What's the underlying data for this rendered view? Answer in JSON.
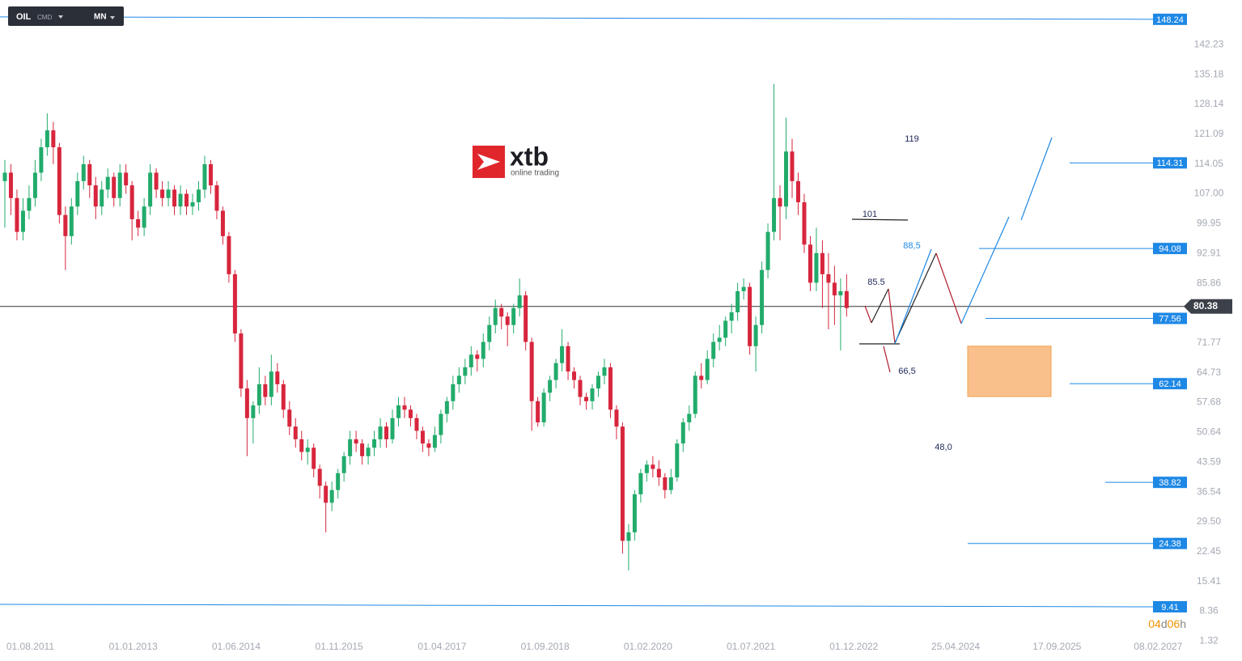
{
  "chart_data": {
    "type": "candlestick",
    "instrument": "OIL",
    "instrument_type": "CMD",
    "interval": "MN",
    "logo": {
      "name": "xtb",
      "tagline": "online trading"
    },
    "ylim": [
      -3.4,
      152.8
    ],
    "yticks": [
      142.23,
      135.18,
      128.14,
      121.09,
      114.05,
      {
        "value": 107,
        "label": "107.00"
      },
      99.95,
      92.91,
      85.86,
      71.77,
      64.73,
      57.68,
      50.64,
      43.59,
      36.54,
      {
        "value": 29.5,
        "label": "29.50"
      },
      22.45,
      15.41,
      8.36,
      1.32
    ],
    "xlim": [
      "01.03.2011",
      "01.07.2027"
    ],
    "xticks": [
      "01.08.2011",
      "01.01.2013",
      "01.06.2014",
      "01.11.2015",
      "01.04.2017",
      "01.09.2018",
      "01.02.2020",
      "01.07.2021",
      "01.12.2022",
      "25.04.2024",
      "17.09.2025",
      "08.02.2027"
    ],
    "up_color": "#22ab6b",
    "down_color": "#d7263d",
    "level_color": "#1e88e5",
    "levels": [
      148.24,
      114.31,
      94.08,
      77.56,
      62.14,
      38.82,
      24.38,
      9.41
    ],
    "last_price": 80.38,
    "zone": [
      59.1,
      71
    ],
    "annotations": [
      "119",
      "101",
      "88,5",
      "85.5",
      "66,5",
      "48,0"
    ],
    "countdown": [
      "04",
      "d",
      "06",
      "h"
    ],
    "candles": [
      [
        110,
        115,
        99,
        112
      ],
      [
        112,
        114,
        102,
        106
      ],
      [
        106,
        108,
        96,
        98
      ],
      [
        98,
        106,
        96,
        103
      ],
      [
        103,
        109,
        101,
        106
      ],
      [
        106,
        115,
        104,
        112
      ],
      [
        112,
        120,
        110,
        118
      ],
      [
        118,
        126,
        116,
        122
      ],
      [
        122,
        124,
        114,
        118
      ],
      [
        118,
        119,
        100,
        102
      ],
      [
        102,
        104,
        89,
        97
      ],
      [
        97,
        106,
        95,
        104
      ],
      [
        104,
        112,
        102,
        110
      ],
      [
        110,
        116,
        108,
        114
      ],
      [
        114,
        115,
        106,
        109
      ],
      [
        109,
        111,
        101,
        104
      ],
      [
        104,
        110,
        102,
        108
      ],
      [
        108,
        113,
        106,
        111
      ],
      [
        111,
        112,
        104,
        106
      ],
      [
        106,
        114,
        104,
        112
      ],
      [
        112,
        114,
        107,
        109
      ],
      [
        109,
        110,
        96,
        101
      ],
      [
        101,
        103,
        97,
        99
      ],
      [
        99,
        106,
        97,
        104
      ],
      [
        104,
        114,
        102,
        112
      ],
      [
        112,
        113,
        106,
        108
      ],
      [
        108,
        110,
        104,
        106
      ],
      [
        106,
        110,
        104,
        108
      ],
      [
        108,
        109,
        102,
        104
      ],
      [
        104,
        109,
        102,
        107
      ],
      [
        107,
        108,
        102,
        104
      ],
      [
        104,
        107,
        102,
        105
      ],
      [
        105,
        110,
        103,
        108
      ],
      [
        108,
        116,
        106,
        114
      ],
      [
        114,
        115,
        107,
        109
      ],
      [
        109,
        110,
        101,
        103
      ],
      [
        103,
        104,
        95,
        97
      ],
      [
        97,
        98,
        86,
        88
      ],
      [
        88,
        89,
        72,
        74
      ],
      [
        74,
        75,
        59,
        61
      ],
      [
        61,
        63,
        45,
        54
      ],
      [
        54,
        58,
        48,
        57
      ],
      [
        57,
        66,
        55,
        62
      ],
      [
        62,
        64,
        57,
        59
      ],
      [
        59,
        69,
        57,
        65
      ],
      [
        65,
        67,
        60,
        62
      ],
      [
        62,
        63,
        54,
        56
      ],
      [
        56,
        58,
        50,
        52
      ],
      [
        52,
        54,
        47,
        49
      ],
      [
        49,
        51,
        44,
        46
      ],
      [
        46,
        49,
        43,
        47
      ],
      [
        47,
        48,
        40,
        42
      ],
      [
        42,
        43,
        35,
        38
      ],
      [
        38,
        39,
        27,
        34
      ],
      [
        34,
        39,
        32,
        37
      ],
      [
        37,
        42,
        35,
        41
      ],
      [
        41,
        46,
        39,
        45
      ],
      [
        45,
        51,
        43,
        49
      ],
      [
        49,
        51,
        46,
        48
      ],
      [
        48,
        49,
        43,
        45
      ],
      [
        45,
        48,
        43,
        47
      ],
      [
        47,
        51,
        45,
        49
      ],
      [
        49,
        54,
        47,
        52
      ],
      [
        52,
        53,
        47,
        49
      ],
      [
        49,
        56,
        48,
        54
      ],
      [
        54,
        59,
        52,
        57
      ],
      [
        57,
        59,
        54,
        56
      ],
      [
        56,
        57,
        52,
        54
      ],
      [
        54,
        55,
        49,
        51
      ],
      [
        51,
        52,
        46,
        48
      ],
      [
        48,
        49,
        45,
        47
      ],
      [
        47,
        52,
        46,
        50
      ],
      [
        50,
        56,
        48,
        55
      ],
      [
        55,
        59,
        53,
        58
      ],
      [
        58,
        64,
        56,
        62
      ],
      [
        62,
        66,
        60,
        64
      ],
      [
        64,
        68,
        62,
        66
      ],
      [
        66,
        71,
        64,
        69
      ],
      [
        69,
        70,
        65,
        68
      ],
      [
        68,
        74,
        66,
        72
      ],
      [
        72,
        78,
        70,
        76
      ],
      [
        76,
        82,
        74,
        80
      ],
      [
        80,
        81,
        75,
        78
      ],
      [
        78,
        79,
        71,
        76
      ],
      [
        76,
        81,
        74,
        80
      ],
      [
        80,
        87,
        78,
        83
      ],
      [
        83,
        84,
        70,
        72
      ],
      [
        72,
        73,
        51,
        58
      ],
      [
        58,
        59,
        52,
        53
      ],
      [
        53,
        61,
        52,
        60
      ],
      [
        60,
        64,
        58,
        63
      ],
      [
        63,
        68,
        61,
        67
      ],
      [
        67,
        75,
        65,
        71
      ],
      [
        71,
        72,
        63,
        65
      ],
      [
        65,
        66,
        61,
        63
      ],
      [
        63,
        64,
        57,
        59
      ],
      [
        59,
        60,
        56,
        58
      ],
      [
        58,
        62,
        56,
        61
      ],
      [
        61,
        65,
        59,
        64
      ],
      [
        64,
        68,
        62,
        66
      ],
      [
        66,
        67,
        54,
        56
      ],
      [
        56,
        57,
        49,
        52
      ],
      [
        52,
        53,
        22,
        25
      ],
      [
        25,
        29,
        18,
        27
      ],
      [
        27,
        37,
        25,
        36
      ],
      [
        36,
        42,
        34,
        41
      ],
      [
        41,
        44,
        39,
        43
      ],
      [
        43,
        45,
        40,
        42
      ],
      [
        42,
        44,
        38,
        40
      ],
      [
        40,
        41,
        35,
        37
      ],
      [
        37,
        42,
        36,
        40
      ],
      [
        40,
        49,
        39,
        48
      ],
      [
        48,
        54,
        46,
        53
      ],
      [
        53,
        57,
        51,
        55
      ],
      [
        55,
        65,
        54,
        64
      ],
      [
        64,
        67,
        61,
        63
      ],
      [
        63,
        70,
        62,
        68
      ],
      [
        68,
        74,
        66,
        72
      ],
      [
        72,
        76,
        70,
        73
      ],
      [
        73,
        78,
        71,
        77
      ],
      [
        77,
        81,
        74,
        79
      ],
      [
        79,
        86,
        77,
        84
      ],
      [
        84,
        87,
        82,
        85
      ],
      [
        85,
        86,
        69,
        71
      ],
      [
        71,
        78,
        65,
        76
      ],
      [
        76,
        91,
        74,
        89
      ],
      [
        89,
        100,
        87,
        98
      ],
      [
        98,
        133,
        96,
        106
      ],
      [
        106,
        109,
        96,
        104
      ],
      [
        104,
        125,
        101,
        117
      ],
      [
        117,
        120,
        106,
        110
      ],
      [
        110,
        112,
        102,
        105
      ],
      [
        105,
        107,
        93,
        95
      ],
      [
        95,
        97,
        84,
        86
      ],
      [
        86,
        99,
        84,
        93
      ],
      [
        93,
        96,
        80,
        88
      ],
      [
        88,
        93,
        75,
        86
      ],
      [
        86,
        90,
        76,
        83
      ],
      [
        83,
        87,
        70,
        84
      ],
      [
        84,
        88,
        78,
        80
      ]
    ]
  }
}
